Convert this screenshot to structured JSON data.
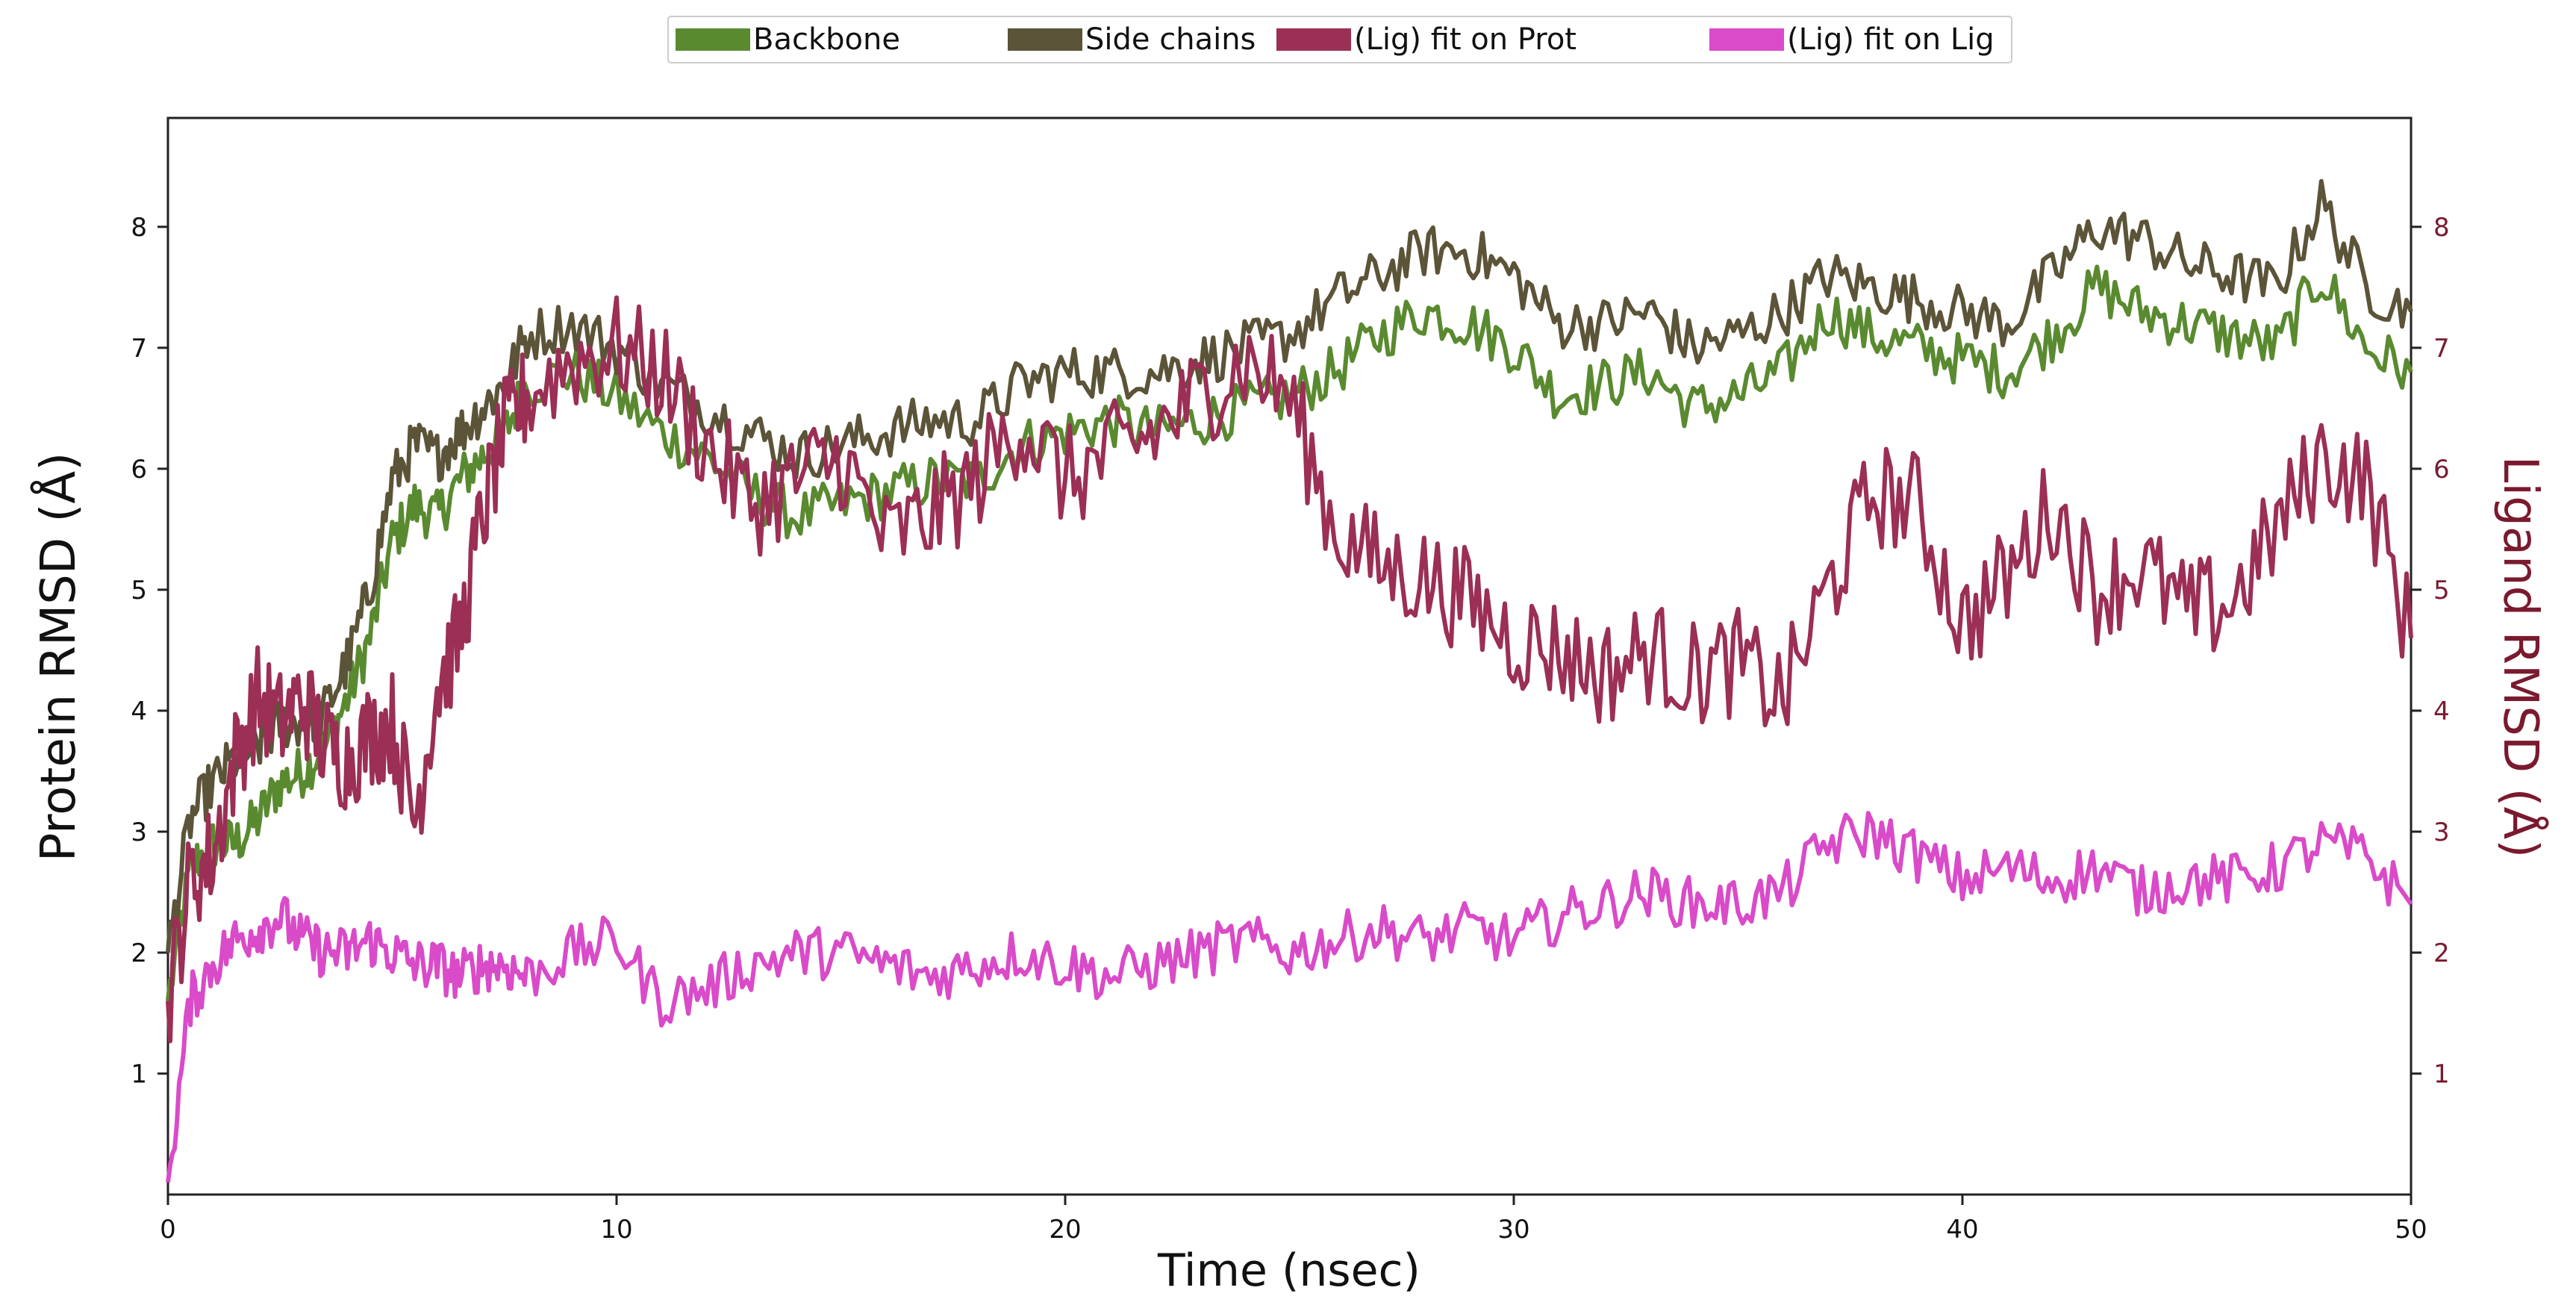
{
  "chart_data": {
    "type": "line",
    "xlabel": "Time (nsec)",
    "ylabel": "Protein RMSD (Å)",
    "y2label": "Ligand RMSD (Å)",
    "xlim": [
      0,
      50
    ],
    "ylim": [
      0,
      8.9
    ],
    "y2lim": [
      0,
      8.9
    ],
    "xticks": [
      "0",
      "10",
      "20",
      "30",
      "40",
      "50"
    ],
    "yticks": [
      "1",
      "2",
      "3",
      "4",
      "5",
      "6",
      "7",
      "8"
    ],
    "y2ticks": [
      "1",
      "2",
      "3",
      "4",
      "5",
      "6",
      "7",
      "8"
    ],
    "grid": false,
    "legend": {
      "placement": "top-center"
    },
    "series": [
      {
        "name": "Backbone",
        "color": "#5a8a30",
        "axis": "left",
        "x": [
          0,
          0.5,
          1,
          1.5,
          2,
          2.5,
          3,
          3.5,
          4,
          4.5,
          5,
          5.5,
          6,
          6.5,
          7,
          7.5,
          8,
          9,
          10,
          11,
          12,
          13,
          14,
          15,
          16,
          17,
          18,
          19,
          20,
          21,
          22,
          23,
          24,
          25,
          26,
          27,
          28,
          29,
          30,
          31,
          32,
          33,
          34,
          35,
          36,
          37,
          38,
          39,
          40,
          41,
          42,
          43,
          44,
          45,
          46,
          47,
          48,
          49,
          50
        ],
        "values": [
          1.6,
          2.7,
          2.9,
          2.9,
          3.1,
          3.4,
          3.5,
          3.7,
          4.1,
          4.6,
          5.4,
          5.7,
          5.6,
          5.9,
          6.1,
          6.3,
          6.7,
          6.8,
          6.6,
          6.3,
          6.1,
          5.8,
          5.6,
          5.7,
          5.8,
          5.9,
          5.9,
          6.2,
          6.3,
          6.4,
          6.3,
          6.4,
          6.5,
          6.6,
          6.8,
          7.1,
          7.3,
          7.2,
          7.0,
          6.6,
          6.7,
          6.8,
          6.5,
          6.6,
          6.8,
          7.3,
          7.1,
          7.0,
          6.9,
          6.8,
          7.1,
          7.5,
          7.3,
          7.2,
          7.1,
          7.0,
          7.6,
          7.0,
          6.8
        ]
      },
      {
        "name": "Side chains",
        "color": "#5c5438",
        "axis": "left",
        "x": [
          0,
          0.5,
          1,
          1.5,
          2,
          2.5,
          3,
          3.5,
          4,
          4.5,
          5,
          5.5,
          6,
          6.5,
          7,
          7.5,
          8,
          9,
          10,
          11,
          12,
          13,
          14,
          15,
          16,
          17,
          18,
          19,
          20,
          21,
          22,
          23,
          24,
          25,
          26,
          27,
          28,
          29,
          30,
          31,
          32,
          33,
          34,
          35,
          36,
          37,
          38,
          39,
          40,
          41,
          42,
          43,
          44,
          45,
          46,
          47,
          48,
          49,
          50
        ],
        "values": [
          2.0,
          3.1,
          3.4,
          3.6,
          3.7,
          3.9,
          3.9,
          4.0,
          4.4,
          5.0,
          5.9,
          6.2,
          6.1,
          6.3,
          6.5,
          6.7,
          7.1,
          7.2,
          7.0,
          6.7,
          6.5,
          6.3,
          6.1,
          6.2,
          6.3,
          6.4,
          6.4,
          6.7,
          6.8,
          6.8,
          6.8,
          6.9,
          7.0,
          7.1,
          7.4,
          7.6,
          7.8,
          7.8,
          7.6,
          7.2,
          7.2,
          7.3,
          7.0,
          7.1,
          7.3,
          7.6,
          7.5,
          7.4,
          7.3,
          7.2,
          7.6,
          8.0,
          7.9,
          7.7,
          7.6,
          7.5,
          8.2,
          7.5,
          7.3
        ]
      },
      {
        "name": "(Lig) fit on Prot",
        "color": "#9b2f56",
        "axis": "right",
        "x": [
          0,
          0.5,
          1,
          1.5,
          2,
          2.5,
          3,
          3.5,
          4,
          4.5,
          5,
          5.5,
          6,
          6.5,
          7,
          7.5,
          8,
          9,
          10,
          11,
          12,
          13,
          14,
          15,
          16,
          17,
          18,
          19,
          20,
          21,
          22,
          23,
          24,
          25,
          26,
          27,
          28,
          29,
          30,
          31,
          32,
          33,
          34,
          35,
          36,
          37,
          38,
          39,
          40,
          41,
          42,
          43,
          44,
          45,
          46,
          47,
          48,
          49,
          50
        ],
        "values": [
          1.6,
          2.6,
          2.8,
          3.6,
          4.1,
          3.9,
          4.1,
          3.7,
          3.6,
          3.8,
          3.9,
          3.1,
          4.2,
          4.6,
          5.6,
          6.3,
          6.6,
          6.9,
          7.0,
          6.8,
          6.2,
          5.7,
          5.9,
          6.1,
          5.4,
          5.6,
          5.9,
          6.4,
          5.9,
          6.1,
          6.3,
          6.6,
          6.9,
          6.6,
          5.5,
          5.2,
          5.1,
          4.9,
          4.6,
          4.5,
          4.3,
          4.5,
          4.3,
          4.4,
          4.1,
          5.0,
          5.8,
          5.7,
          4.7,
          5.1,
          5.7,
          5.0,
          5.2,
          4.8,
          4.9,
          5.5,
          6.1,
          5.9,
          4.6
        ]
      },
      {
        "name": "(Lig) fit on Lig",
        "color": "#d94bc8",
        "axis": "right",
        "x": [
          0,
          0.5,
          1,
          1.5,
          2,
          2.5,
          3,
          3.5,
          4,
          4.5,
          5,
          5.5,
          6,
          6.5,
          7,
          7.5,
          8,
          9,
          10,
          11,
          12,
          13,
          14,
          15,
          16,
          17,
          18,
          19,
          20,
          21,
          22,
          23,
          24,
          25,
          26,
          27,
          28,
          29,
          30,
          31,
          32,
          33,
          34,
          35,
          36,
          37,
          38,
          39,
          40,
          41,
          42,
          43,
          44,
          45,
          46,
          47,
          48,
          49,
          50
        ],
        "values": [
          0.1,
          1.6,
          1.9,
          2.1,
          2.2,
          2.3,
          2.1,
          2.0,
          2.0,
          2.1,
          2.0,
          1.9,
          1.9,
          1.8,
          1.9,
          1.9,
          1.8,
          2.0,
          2.1,
          1.6,
          1.7,
          1.9,
          2.0,
          2.0,
          1.9,
          1.8,
          1.9,
          2.0,
          1.9,
          1.8,
          1.9,
          2.0,
          2.1,
          2.0,
          2.1,
          2.2,
          2.1,
          2.2,
          2.1,
          2.3,
          2.4,
          2.5,
          2.4,
          2.4,
          2.5,
          2.9,
          3.0,
          2.8,
          2.6,
          2.7,
          2.6,
          2.7,
          2.5,
          2.6,
          2.6,
          2.7,
          2.9,
          2.8,
          2.4
        ]
      }
    ]
  }
}
